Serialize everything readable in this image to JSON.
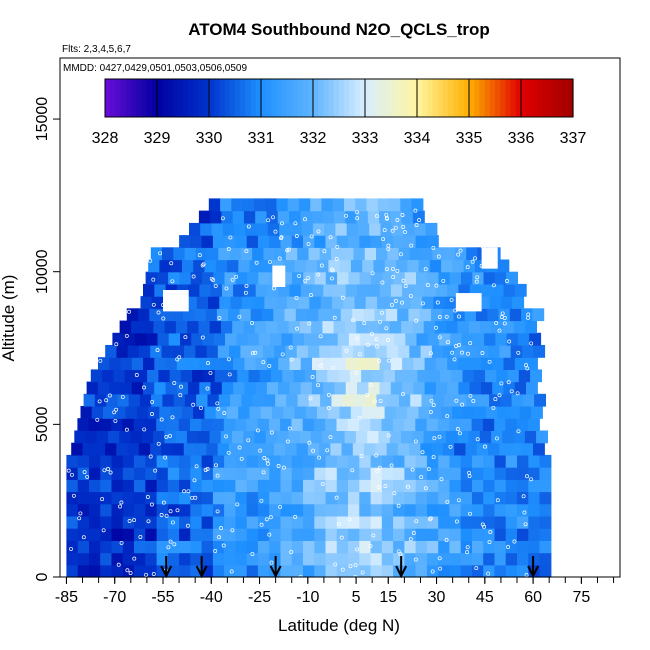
{
  "chart_data": {
    "type": "heatmap",
    "title": "ATOM4 Southbound N2O_QCLS_trop",
    "annotations": [
      "Flts: 2,3,4,5,6,7",
      "MMDD: 0427,0429,0501,0503,0506,0509"
    ],
    "xlabel": "Latitude (deg N)",
    "ylabel": "Altitude (m)",
    "xlim": [
      -87,
      87
    ],
    "ylim": [
      0,
      17000
    ],
    "x_tick_labels": [
      "-85",
      "-70",
      "-55",
      "-40",
      "-25",
      "-10",
      "5",
      "15",
      "30",
      "45",
      "60",
      "75"
    ],
    "x_tick_values": [
      -85,
      -70,
      -55,
      -40,
      -25,
      -10,
      5,
      15,
      30,
      45,
      60,
      75
    ],
    "y_tick_labels": [
      "0",
      "5000",
      "10000",
      "15000"
    ],
    "y_tick_values": [
      0,
      5000,
      10000,
      15000
    ],
    "colorbar": {
      "ticks": [
        "328",
        "329",
        "330",
        "331",
        "332",
        "333",
        "334",
        "335",
        "336",
        "337"
      ],
      "min": 328,
      "max": 337,
      "colors": [
        "#6a0dd9",
        "#0000a0",
        "#0033cc",
        "#1e90ff",
        "#5fb4ff",
        "#d8eeff",
        "#fff5a0",
        "#ffb000",
        "#e00000",
        "#a00000"
      ]
    },
    "flight_arrows_lat": [
      -54,
      -43,
      -20,
      19,
      60
    ],
    "grid": false,
    "legend": "colorbar top inside"
  }
}
